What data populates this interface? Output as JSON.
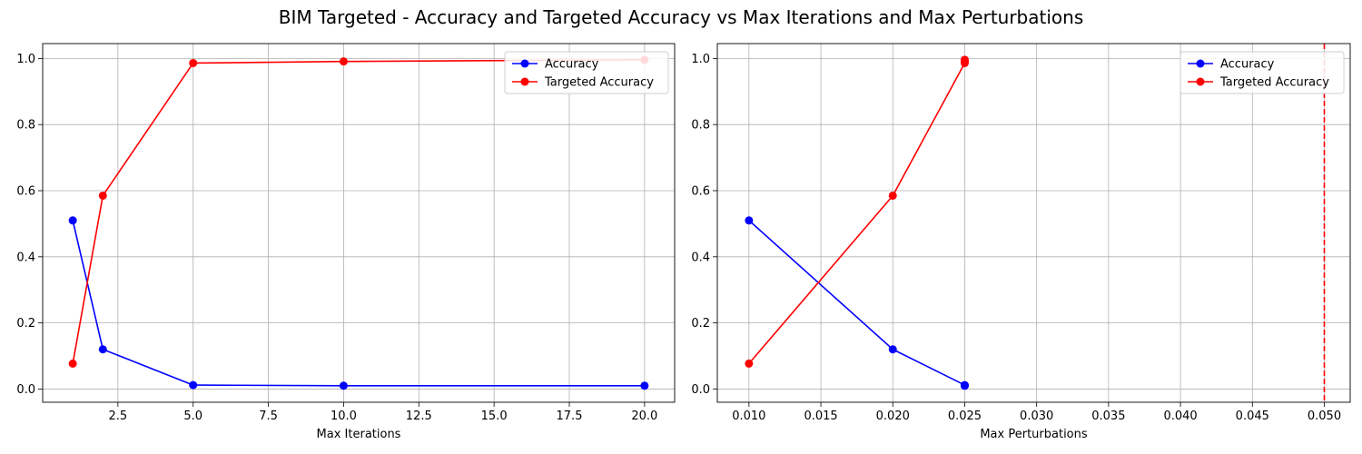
{
  "figure": {
    "title": "BIM Targeted - Accuracy and Targeted Accuracy vs Max Iterations and Max Perturbations"
  },
  "chart_data": [
    {
      "type": "line",
      "title": "",
      "xlabel": "Max Iterations",
      "ylabel": "",
      "xlim": [
        0,
        21
      ],
      "ylim": [
        -0.04,
        1.045
      ],
      "xticks": [
        2.5,
        5.0,
        7.5,
        10.0,
        12.5,
        15.0,
        17.5,
        20.0
      ],
      "xtick_labels": [
        "2.5",
        "5.0",
        "7.5",
        "10.0",
        "12.5",
        "15.0",
        "17.5",
        "20.0"
      ],
      "yticks": [
        0.0,
        0.2,
        0.4,
        0.6,
        0.8,
        1.0
      ],
      "ytick_labels": [
        "0.0",
        "0.2",
        "0.4",
        "0.6",
        "0.8",
        "1.0"
      ],
      "grid": true,
      "legend_position": "top-right",
      "series": [
        {
          "name": "Accuracy",
          "color": "#0000ff",
          "marker": "circle",
          "points": [
            [
              1,
              0.51
            ],
            [
              2,
              0.12
            ],
            [
              5,
              0.012
            ],
            [
              10,
              0.01
            ],
            [
              20,
              0.01
            ]
          ]
        },
        {
          "name": "Targeted Accuracy",
          "color": "#ff0000",
          "marker": "circle",
          "points": [
            [
              1,
              0.077
            ],
            [
              2,
              0.585
            ],
            [
              5,
              0.986
            ],
            [
              10,
              0.991
            ],
            [
              20,
              0.996
            ]
          ]
        }
      ]
    },
    {
      "type": "line",
      "title": "",
      "xlabel": "Max Perturbations",
      "ylabel": "",
      "xlim": [
        0.0078,
        0.0518
      ],
      "ylim": [
        -0.04,
        1.045
      ],
      "xticks": [
        0.01,
        0.015,
        0.02,
        0.025,
        0.03,
        0.035,
        0.04,
        0.045,
        0.05
      ],
      "xtick_labels": [
        "0.010",
        "0.015",
        "0.020",
        "0.025",
        "0.030",
        "0.035",
        "0.040",
        "0.045",
        "0.050"
      ],
      "yticks": [
        0.0,
        0.2,
        0.4,
        0.6,
        0.8,
        1.0
      ],
      "ytick_labels": [
        "0.0",
        "0.2",
        "0.4",
        "0.6",
        "0.8",
        "1.0"
      ],
      "grid": true,
      "legend_position": "top-right",
      "vlines": [
        {
          "x": 0.05,
          "color": "#ff0000",
          "style": "dashed"
        }
      ],
      "series": [
        {
          "name": "Accuracy",
          "color": "#0000ff",
          "marker": "circle",
          "points": [
            [
              0.01,
              0.51
            ],
            [
              0.02,
              0.12
            ],
            [
              0.025,
              0.012
            ],
            [
              0.025,
              0.01
            ],
            [
              0.025,
              0.01
            ]
          ]
        },
        {
          "name": "Targeted Accuracy",
          "color": "#ff0000",
          "marker": "circle",
          "points": [
            [
              0.01,
              0.077
            ],
            [
              0.02,
              0.585
            ],
            [
              0.025,
              0.986
            ],
            [
              0.025,
              0.991
            ],
            [
              0.025,
              0.996
            ]
          ]
        }
      ]
    }
  ]
}
